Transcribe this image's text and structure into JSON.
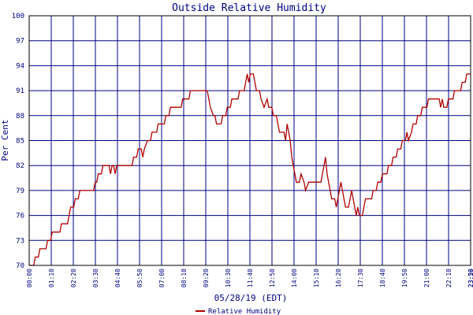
{
  "chart_data": {
    "type": "line",
    "title": "Outside Relative Humidity",
    "ylabel": "Per Cent",
    "xlabel": "05/28/19 (EDT)",
    "ylim": [
      70,
      100
    ],
    "y_ticks": [
      "70",
      "73",
      "76",
      "79",
      "82",
      "85",
      "88",
      "91",
      "94",
      "97",
      "100"
    ],
    "x_ticks": [
      "00:00",
      "01:10",
      "02:20",
      "03:30",
      "04:40",
      "05:50",
      "07:00",
      "08:10",
      "09:20",
      "10:30",
      "11:40",
      "12:50",
      "14:00",
      "15:10",
      "16:20",
      "17:30",
      "18:40",
      "19:50",
      "21:00",
      "22:10",
      "23:20",
      "23:59"
    ],
    "grid": true,
    "colors": {
      "grid": "#000080",
      "line": "#b00000",
      "frame": "#000000",
      "text": "#000080"
    },
    "series": [
      {
        "name": "Relative Humidity",
        "points": [
          [
            0,
            70
          ],
          [
            6,
            70
          ],
          [
            8,
            71
          ],
          [
            12,
            71
          ],
          [
            14,
            72
          ],
          [
            22,
            72
          ],
          [
            24,
            73
          ],
          [
            28,
            73
          ],
          [
            30,
            74
          ],
          [
            40,
            74
          ],
          [
            42,
            75
          ],
          [
            50,
            75
          ],
          [
            52,
            76
          ],
          [
            54,
            77
          ],
          [
            58,
            77
          ],
          [
            60,
            78
          ],
          [
            64,
            78
          ],
          [
            66,
            79
          ],
          [
            84,
            79
          ],
          [
            86,
            80
          ],
          [
            88,
            80
          ],
          [
            90,
            81
          ],
          [
            94,
            81
          ],
          [
            96,
            82
          ],
          [
            104,
            82
          ],
          [
            106,
            81
          ],
          [
            108,
            82
          ],
          [
            110,
            82
          ],
          [
            112,
            81
          ],
          [
            114,
            82
          ],
          [
            134,
            82
          ],
          [
            136,
            83
          ],
          [
            140,
            83
          ],
          [
            142,
            84
          ],
          [
            146,
            84
          ],
          [
            148,
            83
          ],
          [
            150,
            84
          ],
          [
            154,
            85
          ],
          [
            158,
            85
          ],
          [
            160,
            86
          ],
          [
            166,
            86
          ],
          [
            168,
            87
          ],
          [
            176,
            87
          ],
          [
            178,
            88
          ],
          [
            182,
            88
          ],
          [
            184,
            89
          ],
          [
            198,
            89
          ],
          [
            200,
            90
          ],
          [
            208,
            90
          ],
          [
            210,
            91
          ],
          [
            232,
            91
          ],
          [
            234,
            90
          ],
          [
            236,
            89
          ],
          [
            240,
            88
          ],
          [
            242,
            88
          ],
          [
            244,
            87
          ],
          [
            250,
            87
          ],
          [
            252,
            88
          ],
          [
            256,
            88
          ],
          [
            258,
            89
          ],
          [
            262,
            89
          ],
          [
            264,
            90
          ],
          [
            272,
            90
          ],
          [
            274,
            91
          ],
          [
            280,
            91
          ],
          [
            282,
            92
          ],
          [
            284,
            93
          ],
          [
            286,
            92
          ],
          [
            288,
            93
          ],
          [
            292,
            93
          ],
          [
            294,
            92
          ],
          [
            296,
            91
          ],
          [
            300,
            91
          ],
          [
            302,
            90
          ],
          [
            306,
            89
          ],
          [
            310,
            90
          ],
          [
            312,
            89
          ],
          [
            316,
            89
          ],
          [
            318,
            88
          ],
          [
            322,
            88
          ],
          [
            324,
            87
          ],
          [
            326,
            86
          ],
          [
            332,
            86
          ],
          [
            334,
            85
          ],
          [
            336,
            87
          ],
          [
            338,
            86
          ],
          [
            340,
            85
          ],
          [
            342,
            83
          ],
          [
            344,
            82
          ],
          [
            346,
            81
          ],
          [
            348,
            80
          ],
          [
            352,
            80
          ],
          [
            354,
            81
          ],
          [
            358,
            80
          ],
          [
            360,
            79
          ],
          [
            364,
            80
          ],
          [
            380,
            80
          ],
          [
            382,
            81
          ],
          [
            384,
            82
          ],
          [
            386,
            83
          ],
          [
            388,
            81
          ],
          [
            390,
            80
          ],
          [
            392,
            79
          ],
          [
            394,
            78
          ],
          [
            398,
            78
          ],
          [
            400,
            77
          ],
          [
            402,
            78
          ],
          [
            404,
            79
          ],
          [
            406,
            80
          ],
          [
            408,
            79
          ],
          [
            410,
            78
          ],
          [
            412,
            77
          ],
          [
            416,
            77
          ],
          [
            418,
            78
          ],
          [
            420,
            79
          ],
          [
            422,
            78
          ],
          [
            424,
            77
          ],
          [
            426,
            76
          ],
          [
            428,
            77
          ],
          [
            430,
            76
          ],
          [
            434,
            76
          ],
          [
            436,
            77
          ],
          [
            438,
            78
          ],
          [
            446,
            78
          ],
          [
            448,
            79
          ],
          [
            452,
            79
          ],
          [
            454,
            80
          ],
          [
            458,
            80
          ],
          [
            460,
            81
          ],
          [
            466,
            81
          ],
          [
            468,
            82
          ],
          [
            472,
            82
          ],
          [
            474,
            83
          ],
          [
            478,
            83
          ],
          [
            480,
            84
          ],
          [
            484,
            84
          ],
          [
            486,
            85
          ],
          [
            490,
            85
          ],
          [
            492,
            86
          ],
          [
            494,
            85
          ],
          [
            498,
            86
          ],
          [
            500,
            87
          ],
          [
            504,
            87
          ],
          [
            506,
            88
          ],
          [
            510,
            88
          ],
          [
            512,
            89
          ],
          [
            518,
            89
          ],
          [
            520,
            90
          ],
          [
            534,
            90
          ],
          [
            536,
            89
          ],
          [
            538,
            90
          ],
          [
            540,
            89
          ],
          [
            544,
            89
          ],
          [
            546,
            90
          ],
          [
            552,
            90
          ],
          [
            554,
            91
          ],
          [
            562,
            91
          ],
          [
            564,
            92
          ],
          [
            568,
            92
          ],
          [
            570,
            93
          ],
          [
            575,
            93
          ]
        ]
      }
    ]
  }
}
